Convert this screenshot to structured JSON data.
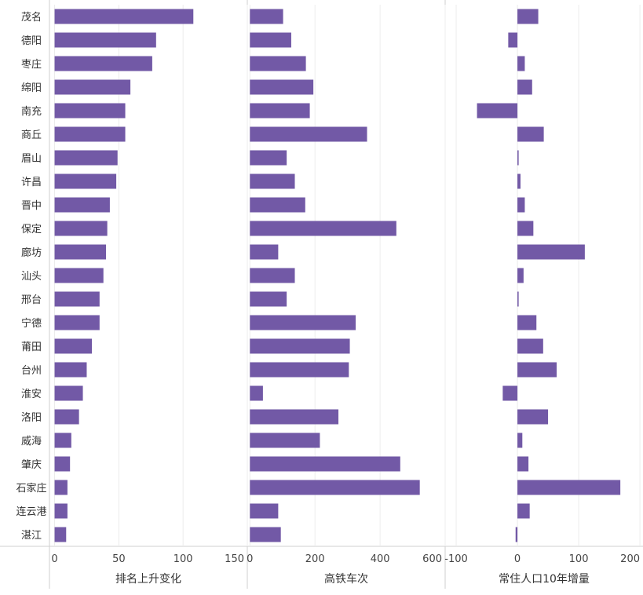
{
  "chart_data": {
    "type": "bar",
    "orientation": "horizontal",
    "bar_color": "#7259A6",
    "categories": [
      "茂名",
      "德阳",
      "枣庄",
      "绵阳",
      "南充",
      "商丘",
      "眉山",
      "许昌",
      "晋中",
      "保定",
      "廊坊",
      "汕头",
      "邢台",
      "宁德",
      "莆田",
      "台州",
      "淮安",
      "洛阳",
      "威海",
      "肇庆",
      "石家庄",
      "连云港",
      "湛江"
    ],
    "panels": [
      {
        "xlabel": "排名上升变化",
        "xlim": [
          -4,
          150
        ],
        "ticks": [
          0,
          50,
          100,
          150
        ],
        "values": [
          108,
          79,
          76,
          59,
          55,
          55,
          49,
          48,
          43,
          41,
          40,
          38,
          35,
          35,
          29,
          25,
          22,
          19,
          13,
          12,
          10,
          10,
          9
        ]
      },
      {
        "xlabel": "高铁车次",
        "xlim": [
          -8,
          600
        ],
        "ticks": [
          0,
          200,
          400,
          600
        ],
        "values": [
          102,
          127,
          172,
          195,
          184,
          360,
          113,
          138,
          170,
          450,
          87,
          138,
          113,
          325,
          307,
          304,
          40,
          272,
          215,
          462,
          522,
          87,
          95
        ]
      },
      {
        "xlabel": "常住人口10年增量",
        "xlim": [
          -118,
          205
        ],
        "ticks": [
          -100,
          0,
          100,
          200
        ],
        "values": [
          34,
          -15,
          12,
          24,
          -66,
          43,
          2,
          5,
          12,
          26,
          110,
          10,
          2,
          31,
          42,
          64,
          -24,
          50,
          8,
          18,
          168,
          20,
          -3
        ]
      }
    ]
  }
}
